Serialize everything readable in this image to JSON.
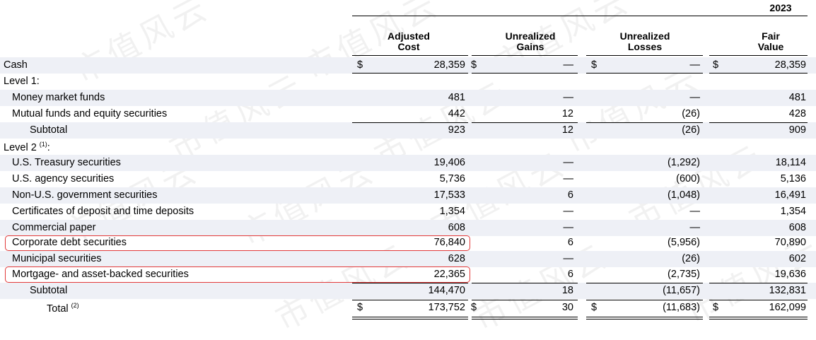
{
  "watermark": "市值风云",
  "year": "2023",
  "headers": [
    [
      "Adjusted",
      "Cost"
    ],
    [
      "Unrealized",
      "Gains"
    ],
    [
      "Unrealized",
      "Losses"
    ],
    [
      "Fair",
      "Value"
    ]
  ],
  "rows": [
    {
      "label": "Cash",
      "c1": "28,359",
      "c2": "—",
      "c3": "—",
      "c4": "28,359",
      "currency": "$"
    },
    {
      "label": "Level 1:",
      "c1": "",
      "c2": "",
      "c3": "",
      "c4": ""
    },
    {
      "label": "Money market funds",
      "c1": "481",
      "c2": "—",
      "c3": "—",
      "c4": "481"
    },
    {
      "label": "Mutual funds and equity securities",
      "c1": "442",
      "c2": "12",
      "c3": "(26)",
      "c4": "428"
    },
    {
      "label": "Subtotal",
      "c1": "923",
      "c2": "12",
      "c3": "(26)",
      "c4": "909"
    },
    {
      "label": "Level 2",
      "label_sup": "(1)",
      "label_suffix": ":",
      "c1": "",
      "c2": "",
      "c3": "",
      "c4": ""
    },
    {
      "label": "U.S. Treasury securities",
      "c1": "19,406",
      "c2": "—",
      "c3": "(1,292)",
      "c4": "18,114"
    },
    {
      "label": "U.S. agency securities",
      "c1": "5,736",
      "c2": "—",
      "c3": "(600)",
      "c4": "5,136"
    },
    {
      "label": "Non-U.S. government securities",
      "c1": "17,533",
      "c2": "6",
      "c3": "(1,048)",
      "c4": "16,491"
    },
    {
      "label": "Certificates of deposit and time deposits",
      "c1": "1,354",
      "c2": "—",
      "c3": "—",
      "c4": "1,354"
    },
    {
      "label": "Commercial paper",
      "c1": "608",
      "c2": "—",
      "c3": "—",
      "c4": "608"
    },
    {
      "label": "Corporate debt securities",
      "c1": "76,840",
      "c2": "6",
      "c3": "(5,956)",
      "c4": "70,890"
    },
    {
      "label": "Municipal securities",
      "c1": "628",
      "c2": "—",
      "c3": "(26)",
      "c4": "602"
    },
    {
      "label": "Mortgage- and asset-backed securities",
      "c1": "22,365",
      "c2": "6",
      "c3": "(2,735)",
      "c4": "19,636"
    },
    {
      "label": "Subtotal",
      "c1": "144,470",
      "c2": "18",
      "c3": "(11,657)",
      "c4": "132,831"
    },
    {
      "label": "Total",
      "label_sup": "(2)",
      "c1": "173,752",
      "c2": "30",
      "c3": "(11,683)",
      "c4": "162,099",
      "currency": "$"
    }
  ],
  "highlight_color": "#e23a3a",
  "shade_color": "#eef0f6"
}
